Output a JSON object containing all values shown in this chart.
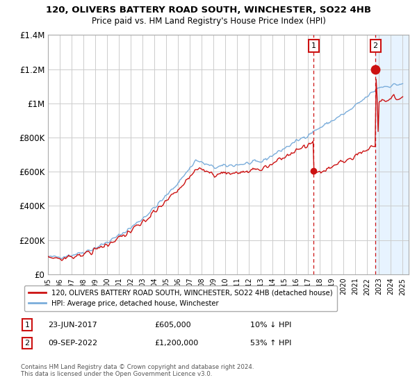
{
  "title1": "120, OLIVERS BATTERY ROAD SOUTH, WINCHESTER, SO22 4HB",
  "title2": "Price paid vs. HM Land Registry's House Price Index (HPI)",
  "ylim": [
    0,
    1400000
  ],
  "yticks": [
    0,
    200000,
    400000,
    600000,
    800000,
    1000000,
    1200000,
    1400000
  ],
  "ytick_labels": [
    "£0",
    "£200K",
    "£400K",
    "£600K",
    "£800K",
    "£1M",
    "£1.2M",
    "£1.4M"
  ],
  "x_start_year": 1995,
  "x_end_year": 2025,
  "sale1_year": 2017.47,
  "sale1_price": 605000,
  "sale2_year": 2022.69,
  "sale2_price": 1200000,
  "hpi_color": "#7aaddb",
  "price_color": "#cc1111",
  "shade_color": "#ddeeff",
  "grid_color": "#cccccc",
  "background_color": "#ffffff",
  "legend_line1": "120, OLIVERS BATTERY ROAD SOUTH, WINCHESTER, SO22 4HB (detached house)",
  "legend_line2": "HPI: Average price, detached house, Winchester",
  "note1_label": "1",
  "note1_date": "23-JUN-2017",
  "note1_price": "£605,000",
  "note1_hpi": "10% ↓ HPI",
  "note2_label": "2",
  "note2_date": "09-SEP-2022",
  "note2_price": "£1,200,000",
  "note2_hpi": "53% ↑ HPI",
  "footer": "Contains HM Land Registry data © Crown copyright and database right 2024.\nThis data is licensed under the Open Government Licence v3.0."
}
